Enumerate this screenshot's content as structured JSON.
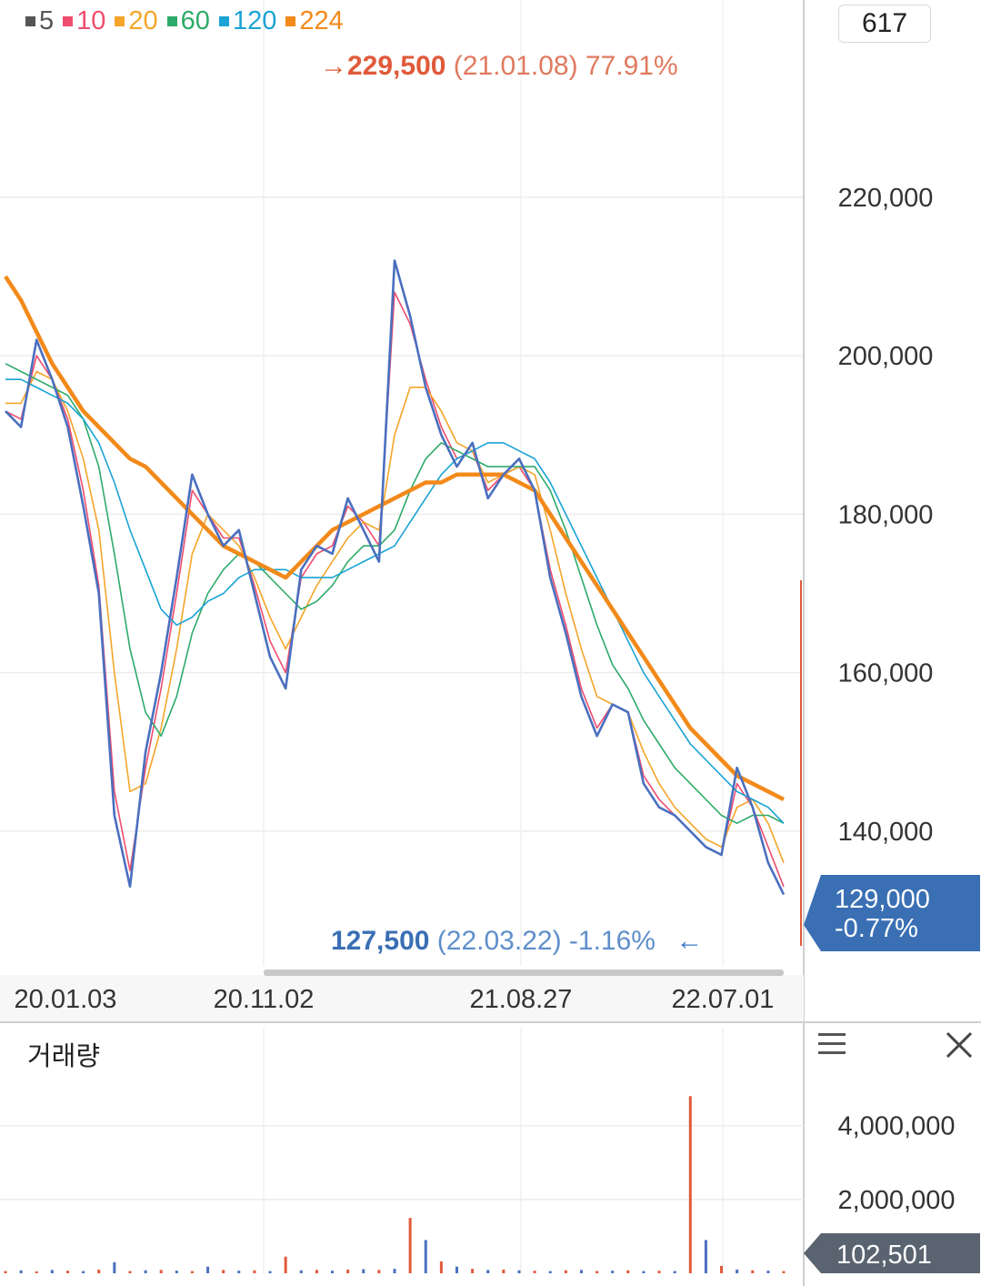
{
  "legend": [
    {
      "label": "5",
      "color": "#555555"
    },
    {
      "label": "10",
      "color": "#ef4d6e"
    },
    {
      "label": "20",
      "color": "#f5a52a"
    },
    {
      "label": "60",
      "color": "#2eaa6a"
    },
    {
      "label": "120",
      "color": "#1aa3d4"
    },
    {
      "label": "224",
      "color": "#f28a1a"
    }
  ],
  "count_box": "617",
  "max_annotation": {
    "arrow": "→",
    "value": "229,500",
    "date": "(21.01.08)",
    "pct": "77.91%"
  },
  "min_annotation": {
    "value": "127,500",
    "date": "(22.03.22)",
    "pct": "-1.16%",
    "arrow": "←"
  },
  "current_price": {
    "value": "129,000",
    "change": "-0.77%"
  },
  "volume_panel": {
    "title": "거래량",
    "current": "102,501"
  },
  "chart_data": {
    "type": "line",
    "price_axis": {
      "ticks": [
        "220,000",
        "200,000",
        "180,000",
        "160,000",
        "140,000"
      ],
      "tick_values": [
        220000,
        200000,
        180000,
        160000,
        140000
      ],
      "ylim": [
        123000,
        238000
      ]
    },
    "date_axis": {
      "ticks": [
        "20.01.03",
        "20.11.02",
        "21.08.27",
        "22.07.01"
      ]
    },
    "series": [
      {
        "name": "5",
        "color": "#4a6fbf",
        "values": [
          193000,
          191000,
          202000,
          197000,
          191000,
          181000,
          170000,
          142000,
          133000,
          150000,
          160000,
          172000,
          185000,
          180000,
          176000,
          178000,
          170000,
          162000,
          158000,
          173000,
          176000,
          175000,
          182000,
          178000,
          174000,
          212000,
          205000,
          196000,
          190000,
          186000,
          189000,
          182000,
          185000,
          187000,
          183000,
          172000,
          165000,
          157000,
          152000,
          156000,
          155000,
          146000,
          143000,
          142000,
          140000,
          138000,
          137000,
          148000,
          143000,
          136000,
          132000
        ]
      },
      {
        "name": "10",
        "color": "#ef4d6e",
        "values": [
          193000,
          192000,
          200000,
          197000,
          192000,
          183000,
          171000,
          145000,
          135000,
          148000,
          158000,
          170000,
          183000,
          180000,
          177000,
          177000,
          171000,
          164000,
          160000,
          172000,
          175000,
          176000,
          181000,
          179000,
          176000,
          208000,
          204000,
          197000,
          191000,
          187000,
          188000,
          183000,
          185000,
          186000,
          183000,
          173000,
          166000,
          158000,
          153000,
          156000,
          155000,
          147000,
          144000,
          142000,
          140000,
          138000,
          137000,
          146000,
          143000,
          138000,
          133000
        ]
      },
      {
        "name": "20",
        "color": "#f5a52a",
        "values": [
          194000,
          194000,
          198000,
          197000,
          193000,
          187000,
          178000,
          160000,
          145000,
          146000,
          153000,
          163000,
          175000,
          180000,
          178000,
          176000,
          172000,
          167000,
          163000,
          167000,
          171000,
          174000,
          177000,
          179000,
          178000,
          190000,
          196000,
          196000,
          193000,
          189000,
          188000,
          184000,
          185000,
          186000,
          185000,
          178000,
          170000,
          163000,
          157000,
          156000,
          155000,
          150000,
          146000,
          143000,
          141000,
          139000,
          138000,
          143000,
          144000,
          141000,
          136000
        ]
      },
      {
        "name": "60",
        "color": "#2eaa6a",
        "values": [
          199000,
          198000,
          197000,
          196000,
          195000,
          192000,
          186000,
          175000,
          163000,
          155000,
          152000,
          157000,
          165000,
          170000,
          173000,
          175000,
          174000,
          172000,
          170000,
          168000,
          169000,
          171000,
          174000,
          176000,
          176000,
          178000,
          183000,
          187000,
          189000,
          188000,
          187000,
          186000,
          186000,
          186000,
          186000,
          183000,
          178000,
          172000,
          166000,
          161000,
          158000,
          154000,
          151000,
          148000,
          146000,
          144000,
          142000,
          141000,
          142000,
          142000,
          141000
        ]
      },
      {
        "name": "120",
        "color": "#1aa3d4",
        "values": [
          197000,
          197000,
          196000,
          195000,
          194000,
          192000,
          189000,
          184000,
          178000,
          173000,
          168000,
          166000,
          167000,
          169000,
          170000,
          172000,
          173000,
          173000,
          173000,
          172000,
          172000,
          172000,
          173000,
          174000,
          175000,
          176000,
          179000,
          182000,
          185000,
          187000,
          188000,
          189000,
          189000,
          188000,
          187000,
          184000,
          180000,
          176000,
          172000,
          168000,
          164000,
          160000,
          157000,
          154000,
          151000,
          149000,
          147000,
          145000,
          144000,
          143000,
          141000
        ]
      },
      {
        "name": "224",
        "color": "#f28a1a",
        "values": [
          210000,
          207000,
          203000,
          199000,
          196000,
          193000,
          191000,
          189000,
          187000,
          186000,
          184000,
          182000,
          180000,
          178000,
          176000,
          175000,
          174000,
          173000,
          172000,
          174000,
          176000,
          178000,
          179000,
          180000,
          181000,
          182000,
          183000,
          184000,
          184000,
          185000,
          185000,
          185000,
          185000,
          184000,
          183000,
          180000,
          177000,
          174000,
          171000,
          168000,
          165000,
          162000,
          159000,
          156000,
          153000,
          151000,
          149000,
          147000,
          146000,
          145000,
          144000
        ]
      }
    ],
    "volume": {
      "ticks": [
        "4,000,000",
        "2,000,000"
      ],
      "tick_values": [
        4000000,
        2000000
      ],
      "ylim": [
        0,
        5300000
      ],
      "values": [
        60000,
        80000,
        50000,
        90000,
        70000,
        60000,
        100000,
        300000,
        60000,
        80000,
        90000,
        70000,
        60000,
        180000,
        90000,
        70000,
        80000,
        60000,
        450000,
        80000,
        90000,
        70000,
        100000,
        110000,
        90000,
        120000,
        1500000,
        900000,
        320000,
        180000,
        120000,
        90000,
        100000,
        80000,
        70000,
        60000,
        80000,
        90000,
        60000,
        70000,
        80000,
        60000,
        70000,
        60000,
        4800000,
        900000,
        200000,
        100000,
        80000,
        70000,
        60000
      ]
    }
  }
}
